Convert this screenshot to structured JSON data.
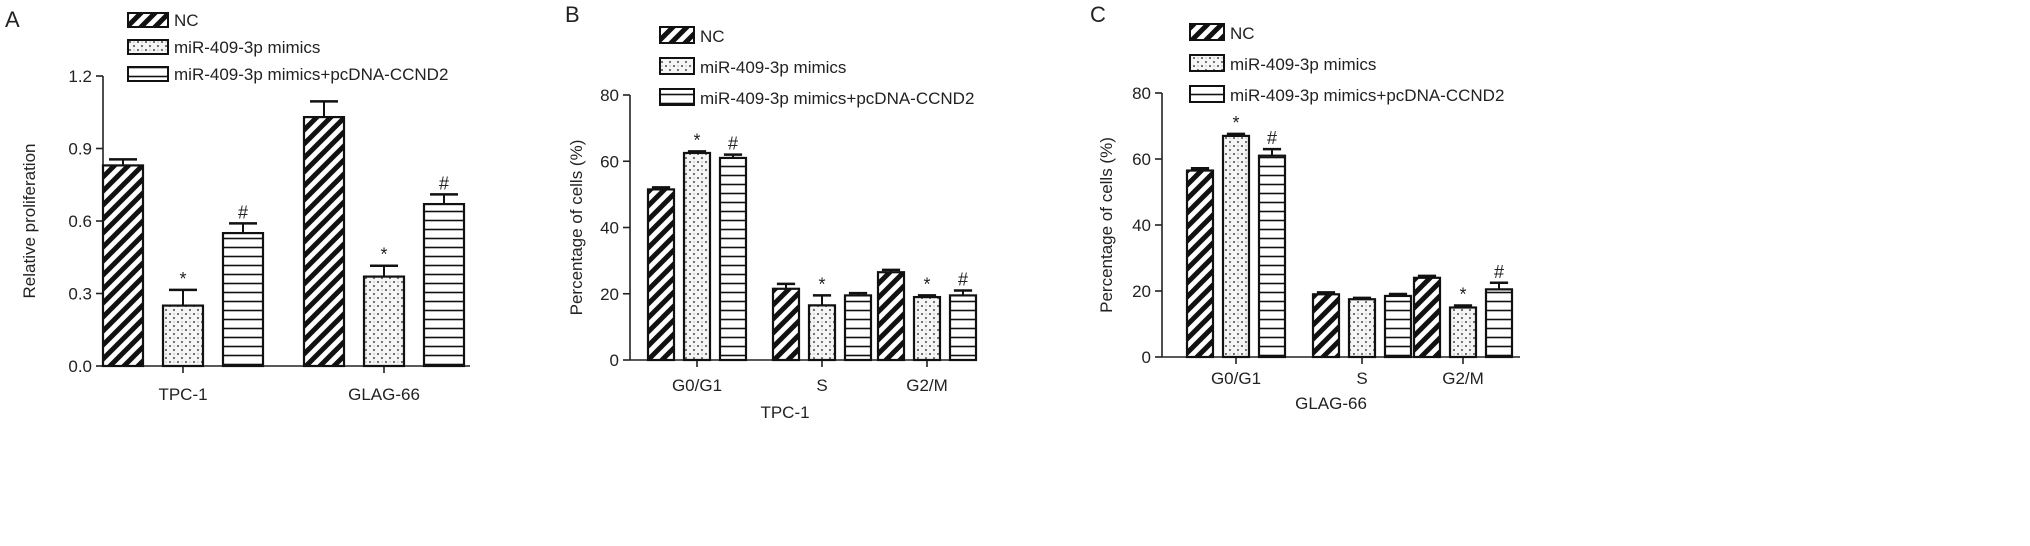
{
  "patterns": {
    "NC": "diag",
    "miR-409-3p mimics": "dots",
    "miR-409-3p mimics+pcDNA-CCND2": "hlines"
  },
  "chart_data": [
    {
      "type": "bar",
      "panel_label": "A",
      "title": "",
      "xlabel": "",
      "ylabel": "Relative proliferation",
      "ylim": [
        0,
        1.2
      ],
      "yticks": [
        0.0,
        0.3,
        0.6,
        0.9,
        1.2
      ],
      "ytick_labels": [
        "0.0",
        "0.3",
        "0.6",
        "0.9",
        "1.2"
      ],
      "categories": [
        "TPC-1",
        "GLAG-66"
      ],
      "series": [
        {
          "name": "NC",
          "values": [
            0.83,
            1.03
          ],
          "errors": [
            0.025,
            0.065
          ],
          "marks": [
            "",
            ""
          ]
        },
        {
          "name": "miR-409-3p mimics",
          "values": [
            0.25,
            0.37
          ],
          "errors": [
            0.065,
            0.045
          ],
          "marks": [
            "*",
            "*"
          ]
        },
        {
          "name": "miR-409-3p mimics+pcDNA-CCND2",
          "values": [
            0.55,
            0.67
          ],
          "errors": [
            0.04,
            0.04
          ],
          "marks": [
            "#",
            "#"
          ]
        }
      ],
      "legend_position": "top"
    },
    {
      "type": "bar",
      "panel_label": "B",
      "title": "",
      "xlabel": "TPC-1",
      "ylabel": "Percentage of cells (%)",
      "ylim": [
        0,
        80
      ],
      "yticks": [
        0,
        20,
        40,
        60,
        80
      ],
      "ytick_labels": [
        "0",
        "20",
        "40",
        "60",
        "80"
      ],
      "categories": [
        "G0/G1",
        "S",
        "G2/M"
      ],
      "series": [
        {
          "name": "NC",
          "values": [
            51.5,
            21.5,
            26.5
          ],
          "errors": [
            0.6,
            1.5,
            0.7
          ],
          "marks": [
            "",
            "",
            ""
          ]
        },
        {
          "name": "miR-409-3p mimics",
          "values": [
            62.5,
            16.5,
            19.0
          ],
          "errors": [
            0.5,
            3.0,
            0.5
          ],
          "marks": [
            "*",
            "*",
            "*"
          ]
        },
        {
          "name": "miR-409-3p mimics+pcDNA-CCND2",
          "values": [
            61.0,
            19.5,
            19.5
          ],
          "errors": [
            1.0,
            0.7,
            1.5
          ],
          "marks": [
            "#",
            "",
            "#"
          ]
        }
      ],
      "legend_position": "top"
    },
    {
      "type": "bar",
      "panel_label": "C",
      "title": "",
      "xlabel": "GLAG-66",
      "ylabel": "Percentage of cells (%)",
      "ylim": [
        0,
        80
      ],
      "yticks": [
        0,
        20,
        40,
        60,
        80
      ],
      "ytick_labels": [
        "0",
        "20",
        "40",
        "60",
        "80"
      ],
      "categories": [
        "G0/G1",
        "S",
        "G2/M"
      ],
      "series": [
        {
          "name": "NC",
          "values": [
            56.5,
            19.0,
            24.0
          ],
          "errors": [
            0.7,
            0.6,
            0.6
          ],
          "marks": [
            "",
            "",
            ""
          ]
        },
        {
          "name": "miR-409-3p mimics",
          "values": [
            67.0,
            17.5,
            15.0
          ],
          "errors": [
            0.6,
            0.4,
            0.6
          ],
          "marks": [
            "*",
            "",
            "*"
          ]
        },
        {
          "name": "miR-409-3p mimics+pcDNA-CCND2",
          "values": [
            61.0,
            18.5,
            20.5
          ],
          "errors": [
            2.0,
            0.6,
            2.0
          ],
          "marks": [
            "#",
            "",
            "#"
          ]
        }
      ],
      "legend_position": "top"
    }
  ]
}
